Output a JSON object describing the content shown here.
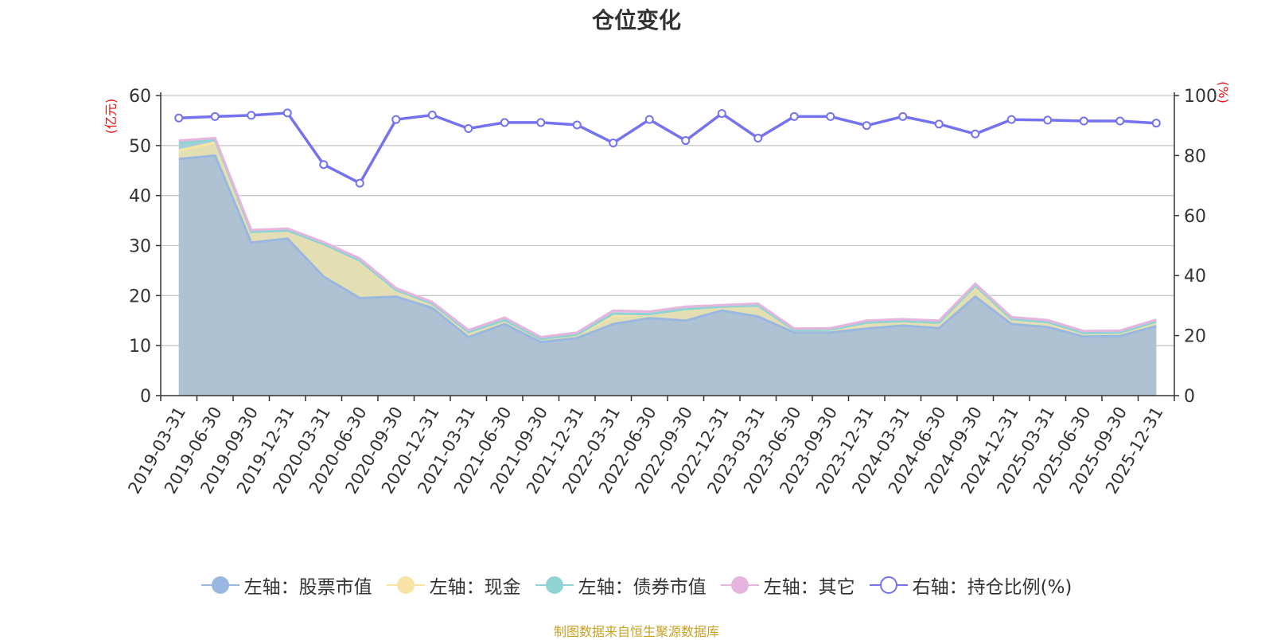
{
  "title": "仓位变化",
  "source_note": "制图数据来自恒生聚源数据库",
  "colors": {
    "stock": "#9ab7e0",
    "cash": "#f7e4a4",
    "bond": "#8fd3d4",
    "other": "#e6b5dd",
    "ratio": "#7472ee",
    "unit": "#ee1111"
  },
  "chart_data": {
    "type": "area",
    "title": "仓位变化",
    "categories": [
      "2019-03-31",
      "2019-06-30",
      "2019-09-30",
      "2019-12-31",
      "2020-03-31",
      "2020-06-30",
      "2020-09-30",
      "2020-12-31",
      "2021-03-31",
      "2021-06-30",
      "2021-09-30",
      "2021-12-31",
      "2022-03-31",
      "2022-06-30",
      "2022-09-30",
      "2022-12-31",
      "2023-03-31",
      "2023-06-30",
      "2023-09-30",
      "2023-12-31",
      "2024-03-31",
      "2024-06-30",
      "2024-09-30",
      "2024-12-31",
      "2025-03-31",
      "2025-06-30",
      "2025-09-30",
      "2025-12-31"
    ],
    "left_axis": {
      "unit": "(亿元)",
      "ylim": [
        0,
        60
      ],
      "ticks": [
        "0",
        "10",
        "20",
        "30",
        "40",
        "50",
        "60"
      ]
    },
    "right_axis": {
      "unit": "(%)",
      "ylim": [
        0,
        100
      ],
      "ticks": [
        "0",
        "20",
        "40",
        "60",
        "80",
        "100"
      ]
    },
    "stacked": true,
    "series": [
      {
        "name": "左轴：股票市值",
        "axis": "left",
        "type": "area",
        "values": [
          47.3,
          48.0,
          30.6,
          31.4,
          23.8,
          19.5,
          19.8,
          17.5,
          11.7,
          14.3,
          10.7,
          11.5,
          14.3,
          15.5,
          15.0,
          17.0,
          15.8,
          12.6,
          12.6,
          13.4,
          14.0,
          13.5,
          19.8,
          14.3,
          13.7,
          11.8,
          11.9,
          13.9
        ]
      },
      {
        "name": "左轴：现金",
        "axis": "left",
        "type": "area",
        "values": [
          1.7,
          2.6,
          2.1,
          1.6,
          6.5,
          7.5,
          1.3,
          0.9,
          1.0,
          0.8,
          0.6,
          0.7,
          1.6,
          0.8,
          2.3,
          0.8,
          2.2,
          0.5,
          0.6,
          1.2,
          0.9,
          1.1,
          2.2,
          1.0,
          1.0,
          0.7,
          0.7,
          0.9
        ]
      },
      {
        "name": "左轴：债券市值",
        "axis": "left",
        "type": "area",
        "values": [
          1.5,
          0.5,
          0,
          0,
          0,
          0,
          0,
          0,
          0,
          0,
          0,
          0,
          0.5,
          0,
          0,
          0,
          0,
          0,
          0,
          0,
          0,
          0,
          0,
          0,
          0,
          0,
          0,
          0
        ]
      },
      {
        "name": "左轴：其它",
        "axis": "left",
        "type": "area",
        "values": [
          0.5,
          0.4,
          0.4,
          0.4,
          0.4,
          0.4,
          0.4,
          0.3,
          0.4,
          0.5,
          0.4,
          0.4,
          0.6,
          0.5,
          0.5,
          0.3,
          0.4,
          0.3,
          0.3,
          0.4,
          0.4,
          0.4,
          0.4,
          0.4,
          0.4,
          0.4,
          0.4,
          0.4
        ]
      },
      {
        "name": "右轴：持仓比例(%)",
        "axis": "right",
        "type": "line",
        "values": [
          92.5,
          93.0,
          93.4,
          94.2,
          77.0,
          70.8,
          92.0,
          93.5,
          89.0,
          91.0,
          91.0,
          90.2,
          84.2,
          92.0,
          85.0,
          94.0,
          85.8,
          93.0,
          93.0,
          90.0,
          93.0,
          90.5,
          87.2,
          92.0,
          91.8,
          91.5,
          91.5,
          90.8
        ]
      }
    ],
    "grid": true,
    "legend_position": "bottom"
  }
}
